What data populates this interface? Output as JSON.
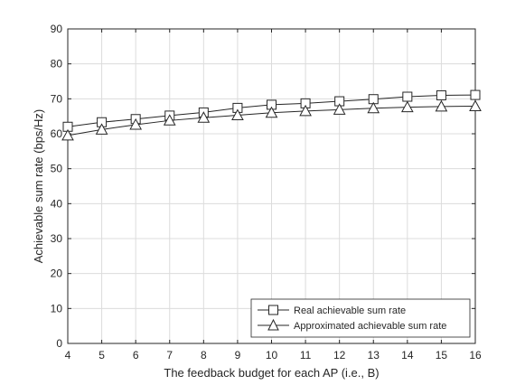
{
  "chart_data": {
    "type": "line",
    "xlabel": "The feedback budget for each AP (i.e., B)",
    "ylabel": "Achievable sum rate (bps/Hz)",
    "xlim": [
      4,
      16
    ],
    "ylim": [
      0,
      90
    ],
    "x_ticks": [
      4,
      5,
      6,
      7,
      8,
      9,
      10,
      11,
      12,
      13,
      14,
      15,
      16
    ],
    "y_ticks": [
      0,
      10,
      20,
      30,
      40,
      50,
      60,
      70,
      80,
      90
    ],
    "grid": true,
    "legend_position": "bottom-right",
    "x": [
      4,
      5,
      6,
      7,
      8,
      9,
      10,
      11,
      12,
      13,
      14,
      15,
      16
    ],
    "series": [
      {
        "name": "Real achievable sum rate",
        "marker": "square",
        "color": "#262626",
        "values": [
          62.0,
          63.3,
          64.2,
          65.2,
          66.1,
          67.4,
          68.3,
          68.7,
          69.3,
          69.9,
          70.6,
          71.0,
          71.1
        ]
      },
      {
        "name": "Approximated achievable sum rate",
        "marker": "triangle",
        "color": "#262626",
        "values": [
          59.5,
          61.2,
          62.6,
          63.8,
          64.6,
          65.3,
          66.0,
          66.5,
          66.9,
          67.3,
          67.6,
          67.8,
          67.9
        ]
      }
    ]
  }
}
